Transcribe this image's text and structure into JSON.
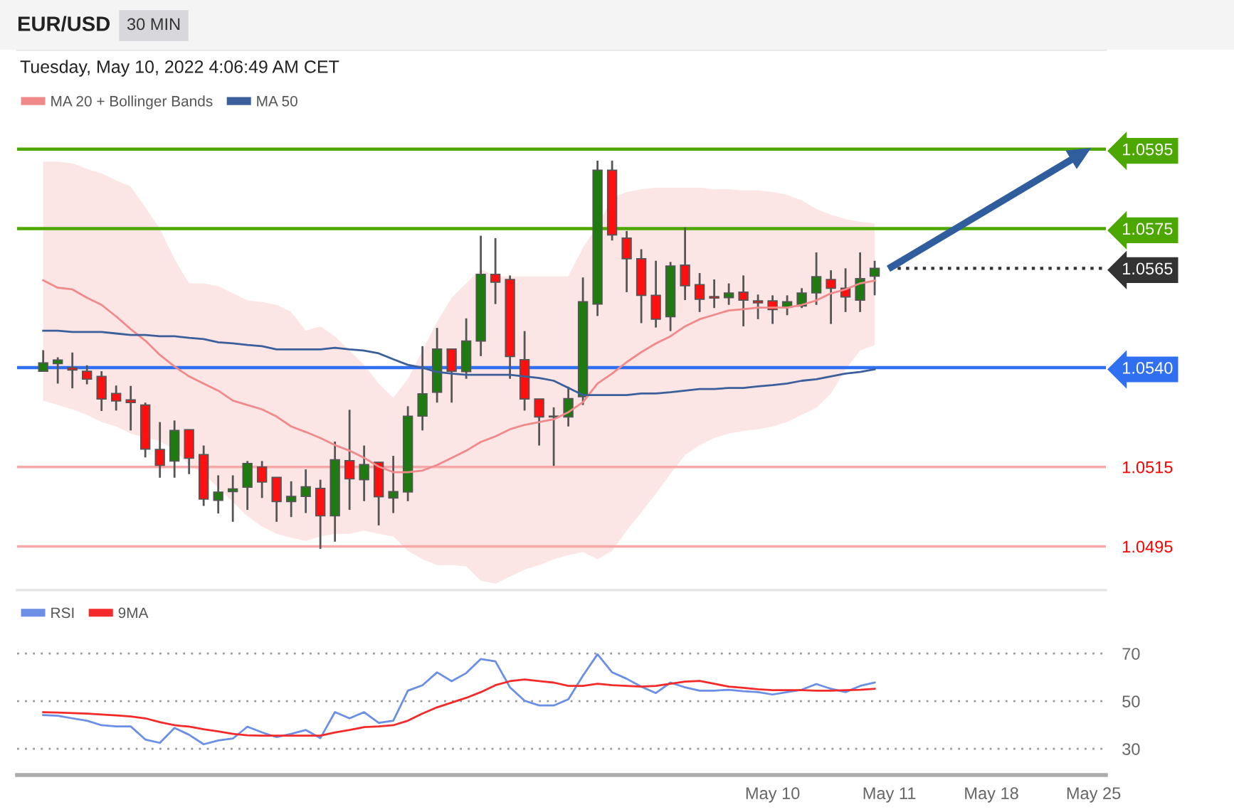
{
  "chart_data": [
    {
      "type": "candlestick",
      "title": "EUR/USD",
      "subtitle": "30 MIN",
      "annotations": [
        "Tuesday, May 10, 2022 4:06:49 AM CET"
      ],
      "categories": [
        null,
        null,
        null,
        null,
        null,
        null,
        null,
        null,
        null,
        null,
        null,
        null,
        null,
        null,
        null,
        null,
        null,
        null,
        null,
        null,
        null,
        null,
        null,
        null,
        null,
        null,
        null,
        null,
        null,
        null,
        null,
        null,
        null,
        null,
        null,
        null,
        null,
        null,
        null,
        null,
        null,
        null,
        null,
        null,
        null,
        null,
        null,
        null,
        null,
        null,
        null,
        null,
        null,
        null,
        null,
        null,
        null,
        null,
        null,
        null,
        null,
        null,
        null,
        null,
        null,
        null,
        null,
        null,
        null,
        null,
        null,
        null,
        null
      ],
      "ohlc": [
        [
          1.05391,
          1.05444,
          1.05391,
          1.05412
        ],
        [
          1.0541,
          1.05426,
          1.0536,
          1.05419
        ],
        [
          1.054,
          1.05438,
          1.05348,
          1.05394
        ],
        [
          1.05391,
          1.05406,
          1.05358,
          1.05371
        ],
        [
          1.05378,
          1.05391,
          1.05291,
          1.05321
        ],
        [
          1.05335,
          1.05355,
          1.05292,
          1.05316
        ],
        [
          1.05319,
          1.05354,
          1.05242,
          1.05312
        ],
        [
          1.05306,
          1.05312,
          1.05174,
          1.05195
        ],
        [
          1.05194,
          1.05263,
          1.05123,
          1.05154
        ],
        [
          1.05165,
          1.05267,
          1.05123,
          1.05242
        ],
        [
          1.05244,
          1.05244,
          1.05132,
          1.05172
        ],
        [
          1.05181,
          1.05204,
          1.05052,
          1.05069
        ],
        [
          1.05066,
          1.05129,
          1.05033,
          1.05087
        ],
        [
          1.05088,
          1.05129,
          1.05012,
          1.05095
        ],
        [
          1.05099,
          1.05165,
          1.05042,
          1.05159
        ],
        [
          1.0515,
          1.05165,
          1.05072,
          1.05112
        ],
        [
          1.05124,
          1.05124,
          1.05012,
          1.05063
        ],
        [
          1.05063,
          1.05114,
          1.05024,
          1.05076
        ],
        [
          1.05076,
          1.05144,
          1.05034,
          1.051
        ],
        [
          1.05096,
          1.05118,
          1.04944,
          1.05027
        ],
        [
          1.05027,
          1.05214,
          1.04962,
          1.05168
        ],
        [
          1.05166,
          1.05294,
          1.05042,
          1.0512
        ],
        [
          1.05118,
          1.05204,
          1.05064,
          1.05156
        ],
        [
          1.05162,
          1.05162,
          1.05003,
          1.05075
        ],
        [
          1.05072,
          1.05178,
          1.05034,
          1.05088
        ],
        [
          1.05087,
          1.05303,
          1.05064,
          1.05278
        ],
        [
          1.05278,
          1.05454,
          1.05242,
          1.05334
        ],
        [
          1.05338,
          1.055,
          1.05312,
          1.05447
        ],
        [
          1.05447,
          1.05447,
          1.05312,
          1.05391
        ],
        [
          1.0539,
          1.05524,
          1.05372,
          1.05467
        ],
        [
          1.05467,
          1.05732,
          1.05429,
          1.05635
        ],
        [
          1.05635,
          1.05726,
          1.0556,
          1.05615
        ],
        [
          1.05622,
          1.05632,
          1.05372,
          1.05428
        ],
        [
          1.0542,
          1.05492,
          1.05292,
          1.05321
        ],
        [
          1.05321,
          1.05321,
          1.05204,
          1.05276
        ],
        [
          1.05276,
          1.053,
          1.05153,
          1.05278
        ],
        [
          1.05276,
          1.05352,
          1.05252,
          1.05322
        ],
        [
          1.05327,
          1.05627,
          1.05306,
          1.05566
        ],
        [
          1.0556,
          1.05921,
          1.0553,
          1.05897
        ],
        [
          1.05897,
          1.05921,
          1.0572,
          1.05734
        ],
        [
          1.05726,
          1.05744,
          1.0559,
          1.05674
        ],
        [
          1.05674,
          1.05698,
          1.05512,
          1.05582
        ],
        [
          1.05582,
          1.05669,
          1.05501,
          1.05522
        ],
        [
          1.05528,
          1.05666,
          1.05492,
          1.05656
        ],
        [
          1.05658,
          1.05753,
          1.0557,
          1.05606
        ],
        [
          1.05609,
          1.05638,
          1.0554,
          1.05572
        ],
        [
          1.05579,
          1.05622,
          1.0555,
          1.05575
        ],
        [
          1.05576,
          1.05612,
          1.05558,
          1.05588
        ],
        [
          1.0559,
          1.05632,
          1.05504,
          1.0557
        ],
        [
          1.05568,
          1.05584,
          1.05522,
          1.05563
        ],
        [
          1.05568,
          1.05582,
          1.0551,
          1.05546
        ],
        [
          1.05552,
          1.05582,
          1.05532,
          1.05566
        ],
        [
          1.05555,
          1.056,
          1.0555,
          1.05588
        ],
        [
          1.05588,
          1.0569,
          1.05558,
          1.05629
        ],
        [
          1.05622,
          1.05645,
          1.0551,
          1.056
        ],
        [
          1.056,
          1.0565,
          1.0554,
          1.05578
        ],
        [
          1.0557,
          1.0569,
          1.0554,
          1.05624
        ],
        [
          1.0563,
          1.05669,
          1.05582,
          1.0565
        ],
        null,
        null,
        null,
        null,
        null,
        null,
        null,
        null,
        null,
        null,
        null,
        null,
        null,
        null,
        null
      ],
      "series": [
        {
          "name": "MA 20 + Bollinger Bands",
          "type": "line",
          "color": "#f08a8a",
          "values": [
            1.0562,
            1.05601,
            1.05597,
            1.05576,
            1.05558,
            1.05529,
            1.05497,
            1.05468,
            1.05432,
            1.05403,
            1.05378,
            1.0536,
            1.05342,
            1.05317,
            1.05306,
            1.05295,
            1.05277,
            1.05252,
            1.05238,
            1.05223,
            1.05205,
            1.05191,
            1.05173,
            1.05151,
            1.05137,
            1.05137,
            1.05141,
            1.05155,
            1.05173,
            1.05191,
            1.05213,
            1.05227,
            1.05245,
            1.05256,
            1.05263,
            1.0527,
            1.05288,
            1.05313,
            1.0536,
            1.05385,
            1.05414,
            1.05439,
            1.05461,
            1.05479,
            1.05504,
            1.05522,
            1.05533,
            1.05544,
            1.05547,
            1.05551,
            1.05551,
            1.05551,
            1.05558,
            1.05569,
            1.05587,
            1.05597,
            1.05612,
            1.05619,
            null,
            null,
            null,
            null,
            null,
            null,
            null,
            null,
            null,
            null,
            null,
            null,
            null,
            null,
            null
          ],
          "upper": [
            1.05918,
            1.05918,
            1.05914,
            1.059,
            1.05889,
            1.05871,
            1.05856,
            1.05803,
            1.05749,
            1.05673,
            1.05612,
            1.05612,
            1.05605,
            1.05587,
            1.05569,
            1.05565,
            1.05558,
            1.0554,
            1.05493,
            1.05504,
            1.05479,
            1.05443,
            1.05407,
            1.0536,
            1.05324,
            1.05371,
            1.05443,
            1.05515,
            1.05576,
            1.05612,
            1.05648,
            1.0563,
            1.0563,
            1.0563,
            1.0563,
            1.0563,
            1.0563,
            1.05702,
            1.05756,
            1.05828,
            1.05842,
            1.05849,
            1.05853,
            1.05853,
            1.05853,
            1.05853,
            1.05849,
            1.05849,
            1.05846,
            1.05846,
            1.05842,
            1.05835,
            1.05821,
            1.05799,
            1.05785,
            1.05774,
            1.05767,
            1.05763,
            null,
            null,
            null,
            null,
            null,
            null,
            null,
            null,
            null,
            null,
            null,
            null,
            null,
            null,
            null
          ],
          "lower": [
            1.05317,
            1.05306,
            1.05295,
            1.05281,
            1.05263,
            1.05252,
            1.05234,
            1.05223,
            1.05216,
            1.05191,
            1.05155,
            1.05133,
            1.05097,
            1.05062,
            1.05026,
            1.05,
            1.04982,
            1.04972,
            1.04964,
            1.04975,
            1.04982,
            1.04982,
            1.0499,
            1.04982,
            1.04975,
            1.04939,
            1.04918,
            1.04903,
            1.04903,
            1.049,
            1.04864,
            1.04856,
            1.04874,
            1.04892,
            1.04903,
            1.04918,
            1.04928,
            1.04936,
            1.04918,
            1.04939,
            1.0499,
            1.05036,
            1.05083,
            1.05133,
            1.0518,
            1.05205,
            1.05223,
            1.05234,
            1.05241,
            1.05245,
            1.05252,
            1.05263,
            1.05281,
            1.05299,
            1.05335,
            1.05396,
            1.05443,
            1.05457,
            null,
            null,
            null,
            null,
            null,
            null,
            null,
            null,
            null,
            null,
            null,
            null,
            null,
            null,
            null
          ]
        },
        {
          "name": "MA 50",
          "type": "line",
          "color": "#3a5f9a",
          "values": [
            1.05493,
            1.05493,
            1.0549,
            1.0549,
            1.0549,
            1.05486,
            1.05482,
            1.05482,
            1.05479,
            1.05479,
            1.05475,
            1.05472,
            1.05464,
            1.05461,
            1.05457,
            1.05454,
            1.05446,
            1.05446,
            1.05446,
            1.05446,
            1.0545,
            1.05446,
            1.05443,
            1.05436,
            1.05421,
            1.05407,
            1.054,
            1.05389,
            1.05385,
            1.05382,
            1.05382,
            1.05382,
            1.05382,
            1.05378,
            1.05374,
            1.05367,
            1.05349,
            1.05331,
            1.05331,
            1.05331,
            1.05331,
            1.05335,
            1.05335,
            1.05338,
            1.05342,
            1.05346,
            1.05346,
            1.05349,
            1.05349,
            1.05353,
            1.05356,
            1.0536,
            1.05367,
            1.05371,
            1.05378,
            1.05385,
            1.05389,
            1.05396,
            null,
            null,
            null,
            null,
            null,
            null,
            null,
            null,
            null,
            null,
            null,
            null,
            null,
            null,
            null
          ]
        }
      ],
      "ref_lines": [
        {
          "axis": "y",
          "value": 1.0595,
          "color": "#4ca800"
        },
        {
          "axis": "y",
          "value": 1.0575,
          "color": "#4ca800"
        },
        {
          "axis": "y",
          "value": 1.0565,
          "color": "#333333",
          "line_style": "dotted"
        },
        {
          "axis": "y",
          "value": 1.054,
          "color": "#2f6ff0"
        },
        {
          "axis": "y",
          "value": 1.0515,
          "color": "#f7a8a8"
        },
        {
          "axis": "y",
          "value": 1.0495,
          "color": "#f7a8a8"
        }
      ],
      "ylim": [
        1.0484,
        1.062
      ],
      "yticks": [
        {
          "value": 1.0595,
          "label": "1.0595"
        },
        {
          "value": 1.0575,
          "label": "1.0575"
        },
        {
          "value": 1.0565,
          "label": "1.0565"
        },
        {
          "value": 1.054,
          "label": "1.0540"
        },
        {
          "value": 1.0515,
          "label": "1.0515"
        },
        {
          "value": 1.0495,
          "label": "1.0495"
        }
      ],
      "tick_labels": "y",
      "legend": "top left"
    },
    {
      "type": "line",
      "categories": [
        null,
        null,
        null,
        null,
        null,
        null,
        null,
        null,
        null,
        null,
        null,
        null,
        null,
        null,
        null,
        null,
        null,
        null,
        null,
        null,
        null,
        null,
        null,
        null,
        null,
        null,
        null,
        null,
        null,
        null,
        null,
        null,
        null,
        null,
        null,
        null,
        null,
        null,
        null,
        null,
        null,
        null,
        null,
        null,
        null,
        null,
        null,
        null,
        null,
        null,
        "May 10",
        null,
        null,
        null,
        null,
        null,
        null,
        null,
        "May 11",
        null,
        null,
        null,
        null,
        null,
        null,
        "May 18",
        null,
        null,
        null,
        null,
        null,
        null,
        "May 25"
      ],
      "series": [
        {
          "name": "RSI",
          "color": "#6b8fe6",
          "values": [
            44.2,
            43.9,
            42.8,
            41.8,
            39.9,
            39.4,
            39.4,
            33.9,
            32.5,
            38.8,
            35.9,
            31.9,
            33.5,
            34.3,
            39.3,
            36.9,
            34.9,
            36.3,
            37.9,
            34.5,
            45.4,
            42.8,
            45.4,
            40.9,
            41.8,
            54.4,
            56.7,
            62.1,
            58.4,
            61.8,
            67.7,
            66.7,
            55.8,
            50.2,
            48.2,
            48.2,
            50.8,
            60.7,
            69.7,
            62.1,
            59.4,
            56.1,
            53.4,
            57.8,
            55.8,
            54.4,
            54.4,
            54.8,
            54.2,
            53.8,
            52.8,
            53.8,
            54.8,
            57.2,
            55.2,
            53.8,
            56.4,
            57.8,
            null,
            null,
            null,
            null,
            null,
            null,
            null,
            null,
            null,
            null,
            null,
            null,
            null,
            null,
            null
          ]
        },
        {
          "name": "9MA",
          "color": "#f42a2a",
          "values": [
            45.4,
            45.2,
            45.0,
            44.8,
            44.4,
            44.0,
            43.6,
            42.8,
            41.2,
            39.9,
            39.3,
            38.2,
            37.3,
            36.3,
            35.7,
            35.5,
            35.5,
            35.5,
            35.5,
            35.5,
            36.9,
            37.9,
            39.1,
            39.4,
            39.9,
            41.8,
            44.8,
            47.4,
            49.4,
            51.4,
            53.8,
            56.7,
            58.4,
            59.1,
            58.4,
            57.8,
            56.4,
            56.4,
            57.3,
            56.7,
            56.4,
            56.1,
            56.4,
            57.3,
            58.2,
            58.5,
            57.3,
            56.1,
            55.6,
            55.0,
            54.6,
            54.6,
            54.6,
            54.4,
            54.4,
            54.6,
            54.8,
            55.2,
            null,
            null,
            null,
            null,
            null,
            null,
            null,
            null,
            null,
            null,
            null,
            null,
            null,
            null,
            null
          ]
        }
      ],
      "ylim": [
        19,
        96.6
      ],
      "yticks": [
        30,
        50,
        70
      ],
      "grid": "y",
      "line_style": "solid",
      "legend": "top left"
    }
  ]
}
